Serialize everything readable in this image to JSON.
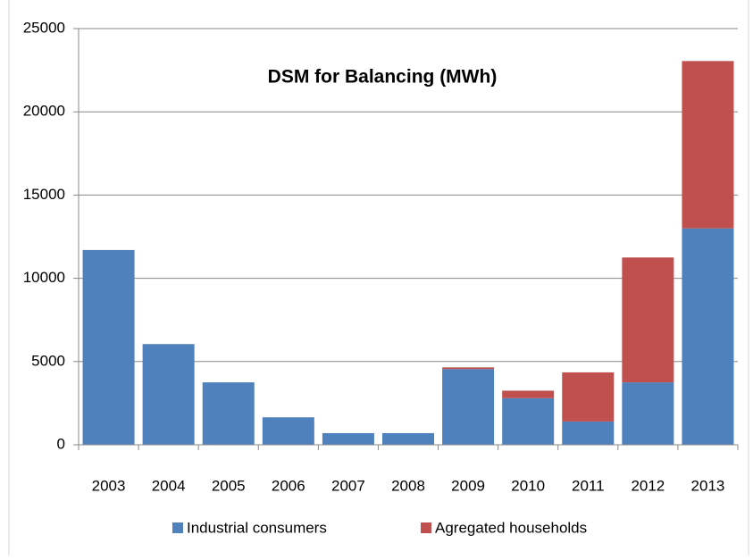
{
  "chart_data": {
    "type": "stacked-bar",
    "title": "DSM for Balancing (MWh)",
    "categories": [
      "2003",
      "2004",
      "2005",
      "2006",
      "2007",
      "2008",
      "2009",
      "2010",
      "2011",
      "2012",
      "2013"
    ],
    "series": [
      {
        "name": "Industrial consumers",
        "color": "#4f81bd",
        "values": [
          11700,
          6050,
          3750,
          1650,
          700,
          700,
          4550,
          2800,
          1400,
          3750,
          13000
        ]
      },
      {
        "name": "Agregated households",
        "color": "#c0504d",
        "values": [
          0,
          0,
          0,
          0,
          0,
          0,
          100,
          450,
          2950,
          7500,
          10050
        ]
      }
    ],
    "ylim": [
      0,
      25000
    ],
    "yticks": [
      0,
      5000,
      10000,
      15000,
      20000,
      25000
    ],
    "grid": true,
    "legend": "bottom"
  }
}
